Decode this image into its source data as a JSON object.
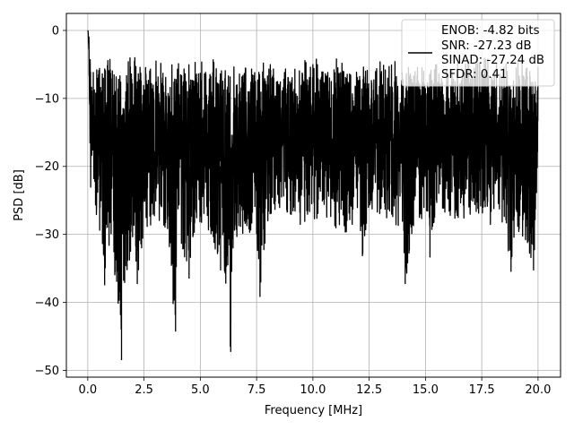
{
  "chart_data": {
    "type": "line",
    "xlabel": "Frequency [MHz]",
    "ylabel": "PSD [dB]",
    "xlim": [
      -0.95,
      21.0
    ],
    "ylim": [
      -51.0,
      2.5
    ],
    "grid": true,
    "legend_placement": "top-right",
    "x_ticks": [
      0.0,
      2.5,
      5.0,
      7.5,
      10.0,
      12.5,
      15.0,
      17.5,
      20.0
    ],
    "x_tick_labels": [
      "0.0",
      "2.5",
      "5.0",
      "7.5",
      "10.0",
      "12.5",
      "15.0",
      "17.5",
      "20.0"
    ],
    "y_ticks": [
      0,
      -10,
      -20,
      -30,
      -40,
      -50
    ],
    "y_tick_labels": [
      "0",
      "−10",
      "−20",
      "−30",
      "−40",
      "−50"
    ],
    "series": [
      {
        "color": "#000000",
        "x": [
          0,
          0.05,
          0.1,
          0.2,
          0.5,
          0.7,
          0.75,
          1,
          1.2,
          1.35,
          1.5,
          2,
          2.2,
          2.5,
          3,
          3.5,
          3.9,
          4,
          4.5,
          4.6,
          5,
          5.5,
          5.9,
          6,
          6.35,
          6.5,
          7,
          7.5,
          7.65,
          8,
          8.5,
          9,
          9.5,
          10,
          10.5,
          11,
          11.5,
          12,
          12.2,
          12.5,
          13,
          13.5,
          14,
          14.1,
          14.5,
          15,
          15.2,
          15.5,
          16,
          16.5,
          17,
          17.5,
          18,
          18.5,
          18.8,
          19,
          19.5,
          19.8,
          20
        ],
        "y": [
          0,
          -11.5,
          -25,
          -24,
          -29,
          -33,
          -37.5,
          -30,
          -36,
          -40.2,
          -48.5,
          -32,
          -37.3,
          -30,
          -28.5,
          -29,
          -44.3,
          -30,
          -36.5,
          -31.8,
          -28,
          -30,
          -35.3,
          -32,
          -47.3,
          -31,
          -29.5,
          -30,
          -39.2,
          -28,
          -26,
          -27,
          -29,
          -28,
          -27,
          -29,
          -30,
          -27,
          -33.2,
          -26,
          -27,
          -28,
          -29.5,
          -37.3,
          -28,
          -27.5,
          -33.4,
          -26,
          -27,
          -28,
          -27,
          -27,
          -29,
          -28,
          -35.5,
          -29,
          -31,
          -35.3,
          -20
        ]
      }
    ],
    "legend": {
      "entries": [
        "ENOB: -4.82 bits",
        "SNR: -27.23 dB",
        "SINAD: -27.24 dB",
        "SFDR: 0.41"
      ]
    }
  }
}
